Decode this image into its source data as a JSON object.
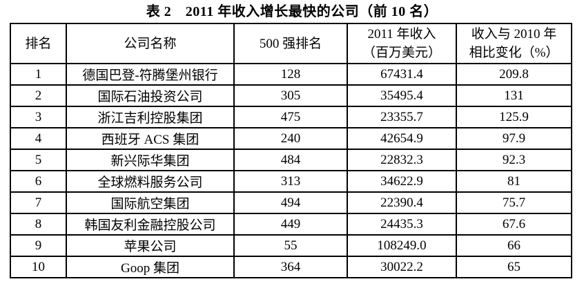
{
  "page": {
    "title": "表 2　2011 年收入增长最快的公司（前 10 名）"
  },
  "table": {
    "headers": [
      {
        "lines": [
          "排名"
        ]
      },
      {
        "lines": [
          "公司名称"
        ]
      },
      {
        "lines": [
          "500 强排名"
        ]
      },
      {
        "lines": [
          "2011 年收入",
          "（百万美元）"
        ]
      },
      {
        "lines": [
          "收入与 2010 年",
          "相比变化（%）"
        ]
      }
    ],
    "rows": [
      {
        "rank": "1",
        "company": "德国巴登-符腾堡州银行",
        "rank500": "128",
        "revenue": "67431.4",
        "change": "209.8"
      },
      {
        "rank": "2",
        "company": "国际石油投资公司",
        "rank500": "305",
        "revenue": "35495.4",
        "change": "131"
      },
      {
        "rank": "3",
        "company": "浙江吉利控股集团",
        "rank500": "475",
        "revenue": "23355.7",
        "change": "125.9"
      },
      {
        "rank": "4",
        "company": "西班牙 ACS 集团",
        "rank500": "240",
        "revenue": "42654.9",
        "change": "97.9"
      },
      {
        "rank": "5",
        "company": "新兴际华集团",
        "rank500": "484",
        "revenue": "22832.3",
        "change": "92.3"
      },
      {
        "rank": "6",
        "company": "全球燃料服务公司",
        "rank500": "313",
        "revenue": "34622.9",
        "change": "81"
      },
      {
        "rank": "7",
        "company": "国际航空集团",
        "rank500": "494",
        "revenue": "22390.4",
        "change": "75.7"
      },
      {
        "rank": "8",
        "company": "韩国友利金融控股公司",
        "rank500": "449",
        "revenue": "24435.3",
        "change": "67.6"
      },
      {
        "rank": "9",
        "company": "苹果公司",
        "rank500": "55",
        "revenue": "108249.0",
        "change": "66"
      },
      {
        "rank": "10",
        "company": "Goop 集团",
        "rank500": "364",
        "revenue": "30022.2",
        "change": "65"
      }
    ]
  }
}
